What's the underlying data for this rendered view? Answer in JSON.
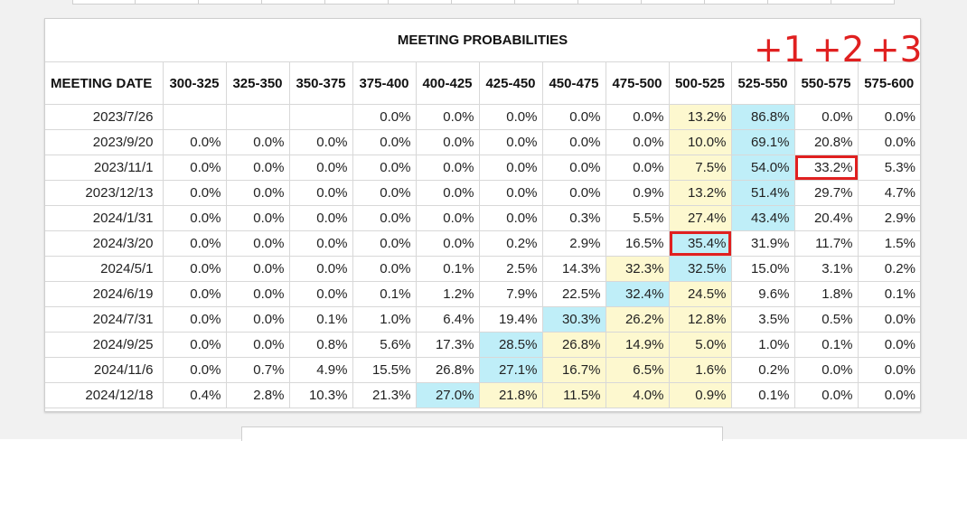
{
  "table": {
    "title": "MEETING PROBABILITIES",
    "headers": [
      "MEETING DATE",
      "300-325",
      "325-350",
      "350-375",
      "375-400",
      "400-425",
      "425-450",
      "450-475",
      "475-500",
      "500-525",
      "525-550",
      "550-575",
      "575-600"
    ],
    "rows": [
      {
        "date": "2023/7/26",
        "values": [
          "",
          "",
          "",
          "0.0%",
          "0.0%",
          "0.0%",
          "0.0%",
          "0.0%",
          "13.2%",
          "86.8%",
          "0.0%",
          "0.0%"
        ]
      },
      {
        "date": "2023/9/20",
        "values": [
          "0.0%",
          "0.0%",
          "0.0%",
          "0.0%",
          "0.0%",
          "0.0%",
          "0.0%",
          "0.0%",
          "10.0%",
          "69.1%",
          "20.8%",
          "0.0%"
        ]
      },
      {
        "date": "2023/11/1",
        "values": [
          "0.0%",
          "0.0%",
          "0.0%",
          "0.0%",
          "0.0%",
          "0.0%",
          "0.0%",
          "0.0%",
          "7.5%",
          "54.0%",
          "33.2%",
          "5.3%"
        ]
      },
      {
        "date": "2023/12/13",
        "values": [
          "0.0%",
          "0.0%",
          "0.0%",
          "0.0%",
          "0.0%",
          "0.0%",
          "0.0%",
          "0.9%",
          "13.2%",
          "51.4%",
          "29.7%",
          "4.7%"
        ]
      },
      {
        "date": "2024/1/31",
        "values": [
          "0.0%",
          "0.0%",
          "0.0%",
          "0.0%",
          "0.0%",
          "0.0%",
          "0.3%",
          "5.5%",
          "27.4%",
          "43.4%",
          "20.4%",
          "2.9%"
        ]
      },
      {
        "date": "2024/3/20",
        "values": [
          "0.0%",
          "0.0%",
          "0.0%",
          "0.0%",
          "0.0%",
          "0.2%",
          "2.9%",
          "16.5%",
          "35.4%",
          "31.9%",
          "11.7%",
          "1.5%"
        ]
      },
      {
        "date": "2024/5/1",
        "values": [
          "0.0%",
          "0.0%",
          "0.0%",
          "0.0%",
          "0.1%",
          "2.5%",
          "14.3%",
          "32.3%",
          "32.5%",
          "15.0%",
          "3.1%",
          "0.2%"
        ]
      },
      {
        "date": "2024/6/19",
        "values": [
          "0.0%",
          "0.0%",
          "0.0%",
          "0.1%",
          "1.2%",
          "7.9%",
          "22.5%",
          "32.4%",
          "24.5%",
          "9.6%",
          "1.8%",
          "0.1%"
        ]
      },
      {
        "date": "2024/7/31",
        "values": [
          "0.0%",
          "0.0%",
          "0.1%",
          "1.0%",
          "6.4%",
          "19.4%",
          "30.3%",
          "26.2%",
          "12.8%",
          "3.5%",
          "0.5%",
          "0.0%"
        ]
      },
      {
        "date": "2024/9/25",
        "values": [
          "0.0%",
          "0.0%",
          "0.8%",
          "5.6%",
          "17.3%",
          "28.5%",
          "26.8%",
          "14.9%",
          "5.0%",
          "1.0%",
          "0.1%",
          "0.0%"
        ]
      },
      {
        "date": "2024/11/6",
        "values": [
          "0.0%",
          "0.7%",
          "4.9%",
          "15.5%",
          "26.8%",
          "27.1%",
          "16.7%",
          "6.5%",
          "1.6%",
          "0.2%",
          "0.0%",
          "0.0%"
        ]
      },
      {
        "date": "2024/12/18",
        "values": [
          "0.4%",
          "2.8%",
          "10.3%",
          "21.3%",
          "27.0%",
          "21.8%",
          "11.5%",
          "4.0%",
          "0.9%",
          "0.1%",
          "0.0%",
          "0.0%"
        ]
      }
    ],
    "blue_cells": [
      [
        0,
        9
      ],
      [
        1,
        9
      ],
      [
        2,
        9
      ],
      [
        3,
        9
      ],
      [
        4,
        9
      ],
      [
        5,
        8
      ],
      [
        6,
        8
      ],
      [
        7,
        7
      ],
      [
        8,
        6
      ],
      [
        9,
        5
      ],
      [
        10,
        5
      ],
      [
        11,
        4
      ]
    ],
    "yellow_cells": [
      [
        0,
        8
      ],
      [
        1,
        8
      ],
      [
        2,
        8
      ],
      [
        3,
        8
      ],
      [
        4,
        8
      ],
      [
        6,
        7
      ],
      [
        7,
        8
      ],
      [
        8,
        7
      ],
      [
        8,
        8
      ],
      [
        9,
        6
      ],
      [
        9,
        7
      ],
      [
        9,
        8
      ],
      [
        10,
        6
      ],
      [
        10,
        7
      ],
      [
        10,
        8
      ],
      [
        11,
        5
      ],
      [
        11,
        6
      ],
      [
        11,
        7
      ],
      [
        11,
        8
      ]
    ],
    "highlighted_cells": [
      [
        2,
        10
      ],
      [
        5,
        8
      ]
    ]
  },
  "annotations": {
    "markers": [
      "+1",
      "+2",
      "+3"
    ],
    "color": "#e02020"
  },
  "colors": {
    "blue": "#bfeef8",
    "yellow": "#fdf8cf",
    "highlight": "#e02020"
  }
}
